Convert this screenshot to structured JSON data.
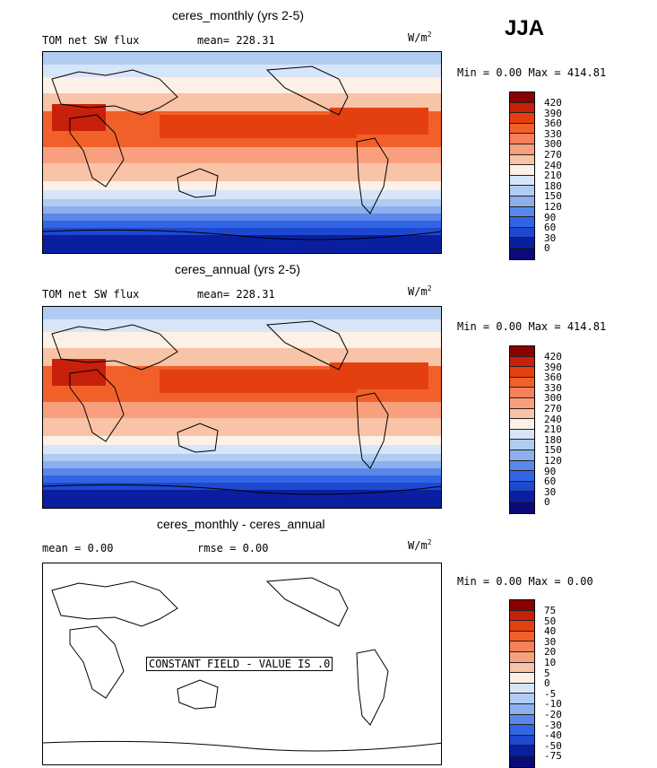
{
  "season": "JJA",
  "panels": [
    {
      "title": "ceres_monthly (yrs 2-5)",
      "variable": "TOM net SW flux",
      "stat": "mean= 228.31",
      "units": "W/m",
      "units_sup": "2",
      "range": "Min =    0.00 Max = 414.81",
      "levels": [
        "420",
        "390",
        "360",
        "330",
        "300",
        "270",
        "240",
        "210",
        "180",
        "150",
        "120",
        "90",
        "60",
        "30",
        "0"
      ],
      "colors": [
        "#8b0000",
        "#c8200a",
        "#e4400f",
        "#f2602a",
        "#f6805a",
        "#f8a07d",
        "#f8c3a7",
        "#fdf0e6",
        "#d6e6f8",
        "#b0ccf2",
        "#8cb0ee",
        "#5a88ea",
        "#3264e6",
        "#1e48d0",
        "#0a1fa0",
        "#0a0a78"
      ]
    },
    {
      "title": "ceres_annual (yrs 2-5)",
      "variable": "TOM net SW flux",
      "stat": "mean= 228.31",
      "units": "W/m",
      "units_sup": "2",
      "range": "Min =    0.00 Max = 414.81",
      "levels": [
        "420",
        "390",
        "360",
        "330",
        "300",
        "270",
        "240",
        "210",
        "180",
        "150",
        "120",
        "90",
        "60",
        "30",
        "0"
      ],
      "colors": [
        "#8b0000",
        "#c8200a",
        "#e4400f",
        "#f2602a",
        "#f6805a",
        "#f8a07d",
        "#f8c3a7",
        "#fdf0e6",
        "#d6e6f8",
        "#b0ccf2",
        "#8cb0ee",
        "#5a88ea",
        "#3264e6",
        "#1e48d0",
        "#0a1fa0",
        "#0a0a78"
      ]
    },
    {
      "title": "ceres_monthly - ceres_annual",
      "mean": "mean =     0.00",
      "rmse": "rmse =    0.00",
      "units": "W/m",
      "units_sup": "2",
      "range": "Min =    0.00 Max =    0.00",
      "constant_field": "CONSTANT FIELD - VALUE IS .0",
      "levels": [
        "75",
        "50",
        "40",
        "30",
        "20",
        "10",
        "5",
        "0",
        "-5",
        "-10",
        "-20",
        "-30",
        "-40",
        "-50",
        "-75"
      ],
      "colors": [
        "#8b0000",
        "#c8200a",
        "#e4400f",
        "#f2602a",
        "#f6805a",
        "#f8a07d",
        "#f8c3a7",
        "#fdf0e6",
        "#d6e6f8",
        "#b0ccf2",
        "#8cb0ee",
        "#5a88ea",
        "#3264e6",
        "#1e48d0",
        "#0a1fa0",
        "#0a0a78"
      ]
    }
  ],
  "chart_data": [
    {
      "type": "heatmap",
      "title": "ceres_monthly (yrs 2-5)",
      "subtitle": "TOM net SW flux",
      "mean": 228.31,
      "min": 0.0,
      "max": 414.81,
      "units": "W/m2",
      "season": "JJA",
      "contour_levels": [
        0,
        30,
        60,
        90,
        120,
        150,
        180,
        210,
        240,
        270,
        300,
        330,
        360,
        390,
        420
      ]
    },
    {
      "type": "heatmap",
      "title": "ceres_annual (yrs 2-5)",
      "subtitle": "TOM net SW flux",
      "mean": 228.31,
      "min": 0.0,
      "max": 414.81,
      "units": "W/m2",
      "season": "JJA",
      "contour_levels": [
        0,
        30,
        60,
        90,
        120,
        150,
        180,
        210,
        240,
        270,
        300,
        330,
        360,
        390,
        420
      ]
    },
    {
      "type": "heatmap",
      "title": "ceres_monthly - ceres_annual",
      "mean": 0.0,
      "rmse": 0.0,
      "min": 0.0,
      "max": 0.0,
      "units": "W/m2",
      "season": "JJA",
      "annotation": "CONSTANT FIELD - VALUE IS .0",
      "contour_levels": [
        -75,
        -50,
        -40,
        -30,
        -20,
        -10,
        -5,
        0,
        5,
        10,
        20,
        30,
        40,
        50,
        75
      ]
    }
  ]
}
